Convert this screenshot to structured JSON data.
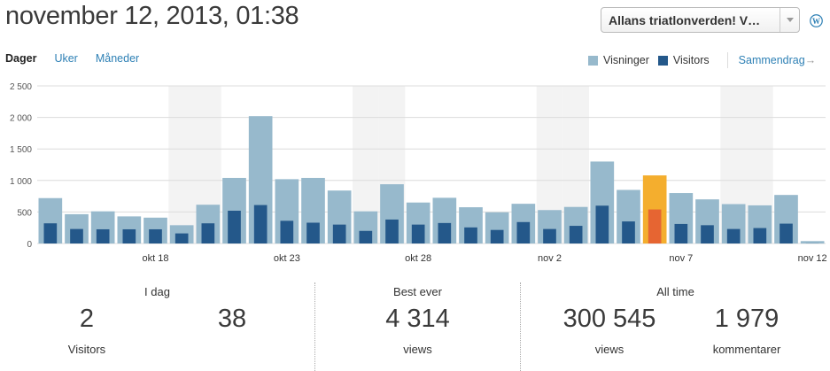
{
  "header": {
    "title": "november 12, 2013, 01:38",
    "site_selector": {
      "selected": "Allans triatlonverden! V…"
    },
    "wp_icon": "wordpress-icon"
  },
  "period_tabs": [
    {
      "label": "Dager",
      "active": true
    },
    {
      "label": "Uker",
      "active": false
    },
    {
      "label": "Måneder",
      "active": false
    }
  ],
  "legend": {
    "views_label": "Visninger",
    "visitors_label": "Visitors",
    "summary_link": "Sammendrag",
    "summary_arrow": "→"
  },
  "colors": {
    "views": "#97b9cc",
    "visitors": "#24588a",
    "highlight_views": "#f4ae2e",
    "highlight_visitors": "#e66532",
    "weekend_band": "#f3f3f3",
    "grid": "#dcdcdc",
    "link": "#2e80b5"
  },
  "chart_data": {
    "type": "bar",
    "title": "",
    "xlabel": "",
    "ylabel": "",
    "ylim": [
      0,
      2500
    ],
    "yticks": [
      "0",
      "500",
      "1 000",
      "1 500",
      "2 000",
      "2 500"
    ],
    "ytick_values": [
      0,
      500,
      1000,
      1500,
      2000,
      2500
    ],
    "xtick_labels": [
      {
        "index": 4,
        "label": "okt 18"
      },
      {
        "index": 9,
        "label": "okt 23"
      },
      {
        "index": 14,
        "label": "okt 28"
      },
      {
        "index": 19,
        "label": "nov 2"
      },
      {
        "index": 24,
        "label": "nov 7"
      },
      {
        "index": 29,
        "label": "nov 12"
      }
    ],
    "categories": [
      "okt 14",
      "okt 15",
      "okt 16",
      "okt 17",
      "okt 18",
      "okt 19",
      "okt 20",
      "okt 21",
      "okt 22",
      "okt 23",
      "okt 24",
      "okt 25",
      "okt 26",
      "okt 27",
      "okt 28",
      "okt 29",
      "okt 30",
      "okt 31",
      "nov 1",
      "nov 2",
      "nov 3",
      "nov 4",
      "nov 5",
      "nov 6",
      "nov 7",
      "nov 8",
      "nov 9",
      "nov 10",
      "nov 11",
      "nov 12"
    ],
    "series": [
      {
        "name": "Visninger",
        "values": [
          720,
          465,
          510,
          430,
          410,
          290,
          615,
          1040,
          2020,
          1020,
          1040,
          840,
          510,
          940,
          650,
          725,
          575,
          495,
          630,
          530,
          580,
          1300,
          850,
          1080,
          800,
          700,
          625,
          605,
          770,
          38
        ]
      },
      {
        "name": "Visitors",
        "values": [
          320,
          230,
          225,
          225,
          225,
          160,
          320,
          520,
          610,
          360,
          330,
          300,
          200,
          380,
          300,
          325,
          255,
          215,
          340,
          230,
          280,
          600,
          350,
          540,
          310,
          290,
          230,
          245,
          315,
          2
        ]
      }
    ],
    "weekend_indices": [
      5,
      6,
      12,
      13,
      19,
      20,
      26,
      27
    ],
    "highlight_index": 23,
    "grid": true,
    "legend_position": "top-right"
  },
  "stats": {
    "today": {
      "title": "I dag",
      "visitors_value": "2",
      "visitors_label": "Visitors",
      "views_value": "38",
      "views_label": ""
    },
    "best_ever": {
      "title": "Best ever",
      "value": "4 314",
      "label": "views"
    },
    "all_time": {
      "title": "All time",
      "views_value": "300 545",
      "views_label": "views",
      "comments_value": "1 979",
      "comments_label": "kommentarer"
    }
  }
}
